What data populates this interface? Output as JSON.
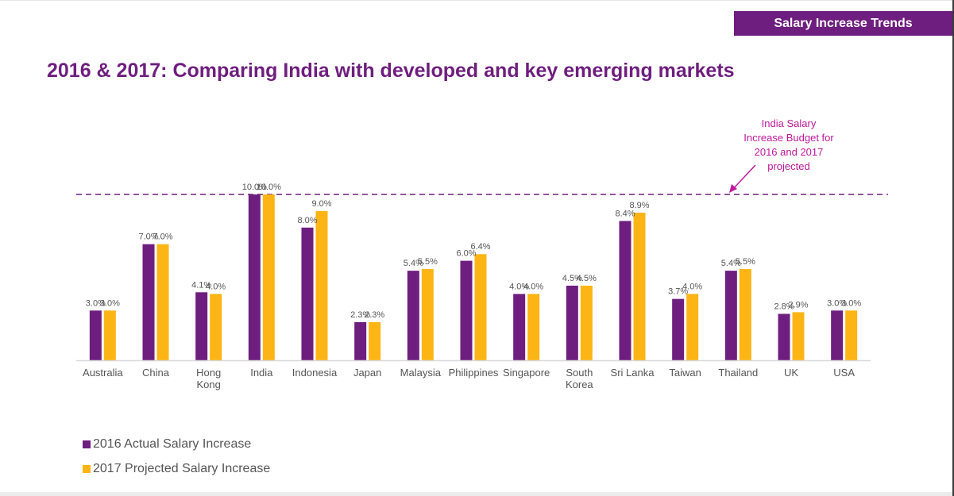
{
  "header": {
    "section_tag": "Salary Increase Trends",
    "title": "2016 & 2017: Comparing India with developed and key emerging markets"
  },
  "colors": {
    "series_2016": "#6e1e7e",
    "series_2017": "#fdb515",
    "title": "#6e1e7e",
    "annotation": "#c0189c",
    "reference_line": "#6e1e7e",
    "label_text": "#555555"
  },
  "chart_data": {
    "type": "bar",
    "title": "2016 & 2017: Comparing India with developed and key emerging markets",
    "xlabel": "",
    "ylabel": "",
    "ylim": [
      0,
      10
    ],
    "grid": false,
    "legend_position": "bottom-left",
    "categories": [
      "Australia",
      "China",
      "Hong Kong",
      "India",
      "Indonesia",
      "Japan",
      "Malaysia",
      "Philippines",
      "Singapore",
      "South Korea",
      "Sri Lanka",
      "Taiwan",
      "Thailand",
      "UK",
      "USA"
    ],
    "category_lines": [
      [
        "Australia"
      ],
      [
        "China"
      ],
      [
        "Hong",
        "Kong"
      ],
      [
        "India"
      ],
      [
        "Indonesia"
      ],
      [
        "Japan"
      ],
      [
        "Malaysia"
      ],
      [
        "Philippines"
      ],
      [
        "Singapore"
      ],
      [
        "South",
        "Korea"
      ],
      [
        "Sri Lanka"
      ],
      [
        "Taiwan"
      ],
      [
        "Thailand"
      ],
      [
        "UK"
      ],
      [
        "USA"
      ]
    ],
    "series": [
      {
        "name": "2016 Actual Salary Increase",
        "values": [
          3.0,
          7.0,
          4.1,
          10.0,
          8.0,
          2.3,
          5.4,
          6.0,
          4.0,
          4.5,
          8.4,
          3.7,
          5.4,
          2.8,
          3.0
        ],
        "labels": [
          "3.0%",
          "7.0%",
          "4.1%",
          "10.0%",
          "8.0%",
          "2.3%",
          "5.4%",
          "6.0%",
          "4.0%",
          "4.5%",
          "8.4%",
          "3.7%",
          "5.4%",
          "2.8%",
          "3.0%"
        ]
      },
      {
        "name": "2017 Projected Salary Increase",
        "values": [
          3.0,
          7.0,
          4.0,
          10.0,
          9.0,
          2.3,
          5.5,
          6.4,
          4.0,
          4.5,
          8.9,
          4.0,
          5.5,
          2.9,
          3.0
        ],
        "labels": [
          "3.0%",
          "7.0%",
          "4.0%",
          "10.0%",
          "9.0%",
          "2.3%",
          "5.5%",
          "6.4%",
          "4.0%",
          "4.5%",
          "8.9%",
          "4.0%",
          "5.5%",
          "2.9%",
          "3.0%"
        ]
      }
    ],
    "reference_line": {
      "value": 10.0,
      "style": "dashed"
    },
    "annotation": {
      "lines": [
        "India Salary",
        "Increase Budget for",
        "2016 and 2017",
        "projected"
      ],
      "points_to": "reference line"
    }
  },
  "legend": [
    {
      "label": "2016 Actual Salary Increase"
    },
    {
      "label": "2017 Projected Salary Increase"
    }
  ]
}
